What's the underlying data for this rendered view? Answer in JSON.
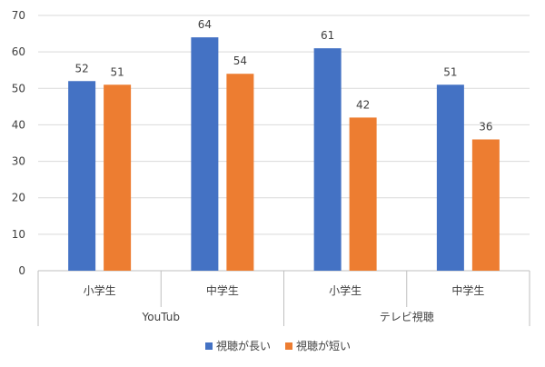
{
  "chart_data": {
    "type": "bar",
    "group_labels": [
      "YouTub",
      "テレビ視聴"
    ],
    "categories": [
      "小学生",
      "中学生",
      "小学生",
      "中学生"
    ],
    "category_groups": [
      0,
      0,
      1,
      1
    ],
    "series": [
      {
        "name": "視聴が長い",
        "values": [
          52,
          64,
          61,
          51
        ],
        "color": "#4472C4"
      },
      {
        "name": "視聴が短い",
        "values": [
          51,
          54,
          42,
          36
        ],
        "color": "#ED7D31"
      }
    ],
    "ylim": [
      0,
      70
    ],
    "yticks": [
      0,
      10,
      20,
      30,
      40,
      50,
      60,
      70
    ],
    "grid": true,
    "legend_position": "bottom",
    "data_labels": true
  }
}
